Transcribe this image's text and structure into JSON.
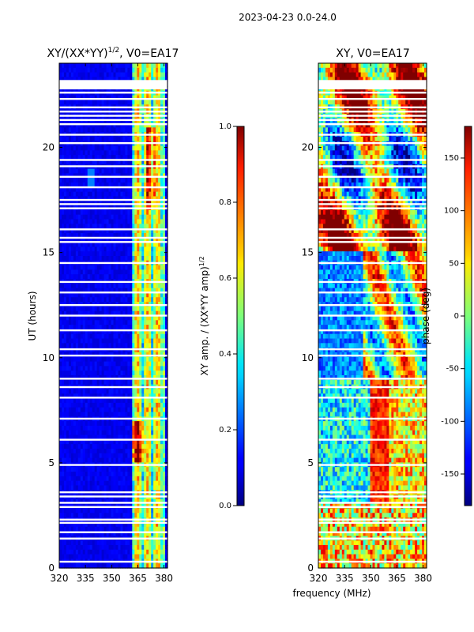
{
  "figure_title": "2023-04-23 0.0-24.0",
  "chart_data": [
    {
      "type": "heatmap",
      "title_main": "XY/(XX*YY)",
      "title_exp": "1/2",
      "title_rest": ", V0=EA17",
      "xlabel": "",
      "ylabel": "UT (hours)",
      "xlim": [
        320,
        382
      ],
      "ylim": [
        0,
        24
      ],
      "xticks": [
        320,
        335,
        350,
        365,
        380
      ],
      "yticks": [
        0,
        5,
        10,
        15,
        20
      ],
      "flagged_hours": [
        0.3,
        1.4,
        1.7,
        2.15,
        2.3,
        2.9,
        3.1,
        3.4,
        3.6,
        4.9,
        6.1,
        7.1,
        8.1,
        8.6,
        9.0,
        10.1,
        10.4,
        11.3,
        12.0,
        12.5,
        13.1,
        13.6,
        14.5,
        15.5,
        15.7,
        16.1,
        17.1,
        17.3,
        17.5,
        18.1,
        18.6,
        19.1,
        19.4,
        20.2,
        20.6,
        21.1,
        21.3,
        21.5,
        21.7,
        21.9,
        22.3,
        22.6,
        22.8
      ],
      "colorbar": {
        "label_main": "XY amp. / (XX*YY amp)",
        "label_exp": "1/2",
        "range": [
          0.0,
          1.0
        ],
        "ticks": [
          "0.0",
          "0.2",
          "0.4",
          "0.6",
          "0.8",
          "1.0"
        ]
      }
    },
    {
      "type": "heatmap",
      "title": "XY, V0=EA17",
      "xlabel": "frequency (MHz)",
      "ylabel": "",
      "xlim": [
        320,
        382
      ],
      "ylim": [
        0,
        24
      ],
      "xticks": [
        320,
        335,
        350,
        365,
        380
      ],
      "yticks": [
        0,
        5,
        10,
        15,
        20
      ],
      "flagged_hours": [
        0.3,
        1.4,
        1.7,
        2.15,
        2.3,
        2.9,
        3.1,
        3.4,
        3.6,
        4.9,
        6.1,
        7.1,
        8.1,
        8.6,
        9.0,
        10.1,
        10.4,
        11.3,
        12.0,
        12.5,
        13.1,
        13.6,
        14.5,
        15.5,
        15.7,
        16.1,
        17.1,
        17.3,
        17.5,
        18.1,
        18.6,
        19.1,
        19.4,
        20.2,
        20.6,
        21.1,
        21.3,
        21.5,
        21.7,
        21.9,
        22.3,
        22.6,
        22.8
      ],
      "colorbar": {
        "label": "phase (deg)",
        "range": [
          -180,
          180
        ],
        "ticks": [
          "-150",
          "-100",
          "-50",
          "0",
          "50",
          "100",
          "150"
        ]
      }
    }
  ]
}
